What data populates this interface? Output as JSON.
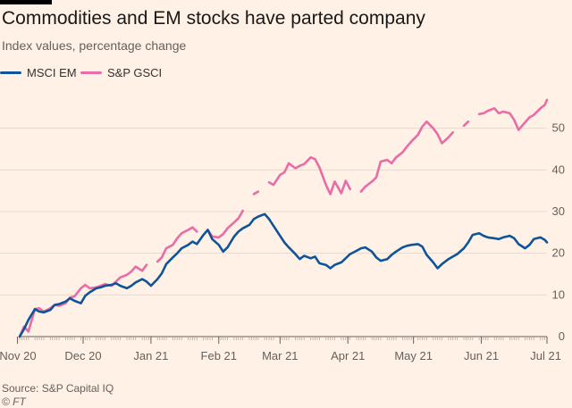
{
  "title": "Commodities and EM stocks have parted company",
  "subtitle": "Index values, percentage change",
  "source": "Source: S&P Capital IQ",
  "credit": "© FT",
  "colors": {
    "background": "#fff1e5",
    "msci": "#0f5499",
    "gsci": "#e86ca6",
    "grid": "#e6d9ce"
  },
  "chart_data": {
    "type": "line",
    "title": "Commodities and EM stocks have parted company",
    "subtitle": "Index values, percentage change",
    "xlabel": "",
    "ylabel": "",
    "x_range": [
      "2020-11-02",
      "2021-07-01"
    ],
    "ylim": [
      0,
      60
    ],
    "y_ticks": [
      0,
      10,
      20,
      30,
      40,
      50
    ],
    "x_tick_labels": [
      {
        "label": "Nov 20",
        "date": "2020-11-01"
      },
      {
        "label": "Dec 20",
        "date": "2020-12-01"
      },
      {
        "label": "Jan 21",
        "date": "2021-01-01"
      },
      {
        "label": "Feb 21",
        "date": "2021-02-01"
      },
      {
        "label": "Mar 21",
        "date": "2021-03-01"
      },
      {
        "label": "Apr 21",
        "date": "2021-04-01"
      },
      {
        "label": "May 21",
        "date": "2021-05-01"
      },
      {
        "label": "Jun 21",
        "date": "2021-06-01"
      },
      {
        "label": "Jul 21",
        "date": "2021-07-01"
      }
    ],
    "grid": true,
    "y_axis_side": "right",
    "legend_position": "top-left",
    "series": [
      {
        "name": "MSCI EM",
        "color": "#0f5499",
        "points": [
          [
            "2020-11-02",
            0.0
          ],
          [
            "2020-11-04",
            1.8
          ],
          [
            "2020-11-06",
            4.0
          ],
          [
            "2020-11-09",
            6.6
          ],
          [
            "2020-11-11",
            6.0
          ],
          [
            "2020-11-13",
            5.8
          ],
          [
            "2020-11-16",
            6.4
          ],
          [
            "2020-11-18",
            7.6
          ],
          [
            "2020-11-20",
            7.8
          ],
          [
            "2020-11-23",
            8.4
          ],
          [
            "2020-11-25",
            9.2
          ],
          [
            "2020-11-27",
            8.6
          ],
          [
            "2020-11-30",
            8.0
          ],
          [
            "2020-12-02",
            9.8
          ],
          [
            "2020-12-04",
            10.6
          ],
          [
            "2020-12-07",
            11.6
          ],
          [
            "2020-12-09",
            11.8
          ],
          [
            "2020-12-11",
            12.2
          ],
          [
            "2020-12-14",
            12.4
          ],
          [
            "2020-12-16",
            12.8
          ],
          [
            "2020-12-18",
            12.2
          ],
          [
            "2020-12-21",
            11.6
          ],
          [
            "2020-12-23",
            12.2
          ],
          [
            "2020-12-25",
            13.0
          ],
          [
            "2020-12-28",
            13.8
          ],
          [
            "2020-12-30",
            13.2
          ],
          [
            "2021-01-01",
            12.2
          ],
          [
            "2021-01-04",
            13.8
          ],
          [
            "2021-01-06",
            15.2
          ],
          [
            "2021-01-08",
            17.4
          ],
          [
            "2021-01-11",
            19.0
          ],
          [
            "2021-01-13",
            20.0
          ],
          [
            "2021-01-15",
            21.2
          ],
          [
            "2021-01-18",
            22.0
          ],
          [
            "2021-01-20",
            22.8
          ],
          [
            "2021-01-22",
            22.2
          ],
          [
            "2021-01-25",
            24.4
          ],
          [
            "2021-01-27",
            25.6
          ],
          [
            "2021-01-29",
            23.4
          ],
          [
            "2021-02-01",
            22.0
          ],
          [
            "2021-02-03",
            20.4
          ],
          [
            "2021-02-05",
            21.4
          ],
          [
            "2021-02-08",
            24.0
          ],
          [
            "2021-02-10",
            25.2
          ],
          [
            "2021-02-12",
            26.0
          ],
          [
            "2021-02-15",
            26.8
          ],
          [
            "2021-02-17",
            28.2
          ],
          [
            "2021-02-19",
            28.8
          ],
          [
            "2021-02-22",
            29.4
          ],
          [
            "2021-02-24",
            28.2
          ],
          [
            "2021-02-26",
            26.6
          ],
          [
            "2021-03-01",
            24.2
          ],
          [
            "2021-03-03",
            22.6
          ],
          [
            "2021-03-05",
            21.4
          ],
          [
            "2021-03-08",
            19.8
          ],
          [
            "2021-03-10",
            18.6
          ],
          [
            "2021-03-12",
            19.4
          ],
          [
            "2021-03-15",
            18.8
          ],
          [
            "2021-03-17",
            19.2
          ],
          [
            "2021-03-19",
            17.6
          ],
          [
            "2021-03-22",
            17.2
          ],
          [
            "2021-03-24",
            16.4
          ],
          [
            "2021-03-26",
            17.2
          ],
          [
            "2021-03-29",
            17.8
          ],
          [
            "2021-03-31",
            18.8
          ],
          [
            "2021-04-02",
            19.8
          ],
          [
            "2021-04-05",
            20.6
          ],
          [
            "2021-04-07",
            21.2
          ],
          [
            "2021-04-09",
            21.4
          ],
          [
            "2021-04-12",
            20.4
          ],
          [
            "2021-04-14",
            19.0
          ],
          [
            "2021-04-16",
            18.2
          ],
          [
            "2021-04-19",
            18.6
          ],
          [
            "2021-04-21",
            19.6
          ],
          [
            "2021-04-23",
            20.4
          ],
          [
            "2021-04-26",
            21.4
          ],
          [
            "2021-04-28",
            21.8
          ],
          [
            "2021-04-30",
            22.0
          ],
          [
            "2021-05-03",
            22.2
          ],
          [
            "2021-05-05",
            21.6
          ],
          [
            "2021-05-07",
            19.6
          ],
          [
            "2021-05-10",
            17.8
          ],
          [
            "2021-05-12",
            16.4
          ],
          [
            "2021-05-14",
            17.4
          ],
          [
            "2021-05-17",
            18.6
          ],
          [
            "2021-05-19",
            19.2
          ],
          [
            "2021-05-21",
            19.8
          ],
          [
            "2021-05-24",
            21.2
          ],
          [
            "2021-05-26",
            22.6
          ],
          [
            "2021-05-28",
            24.4
          ],
          [
            "2021-05-31",
            24.8
          ],
          [
            "2021-06-02",
            24.2
          ],
          [
            "2021-06-04",
            23.8
          ],
          [
            "2021-06-07",
            23.6
          ],
          [
            "2021-06-09",
            23.4
          ],
          [
            "2021-06-11",
            23.8
          ],
          [
            "2021-06-14",
            24.2
          ],
          [
            "2021-06-16",
            23.6
          ],
          [
            "2021-06-18",
            22.2
          ],
          [
            "2021-06-21",
            21.2
          ],
          [
            "2021-06-23",
            22.0
          ],
          [
            "2021-06-25",
            23.4
          ],
          [
            "2021-06-28",
            23.8
          ],
          [
            "2021-06-30",
            23.2
          ],
          [
            "2021-07-01",
            22.6
          ]
        ]
      },
      {
        "name": "S&P GSCI",
        "color": "#e86ca6",
        "points": [
          [
            "2020-11-02",
            0.0
          ],
          [
            "2020-11-04",
            2.4
          ],
          [
            "2020-11-06",
            1.2
          ],
          [
            "2020-11-09",
            6.6
          ],
          [
            "2020-11-11",
            6.8
          ],
          [
            "2020-11-13",
            6.0
          ],
          [
            "2020-11-16",
            6.8
          ],
          [
            "2020-11-18",
            7.6
          ],
          [
            "2020-11-20",
            7.4
          ],
          [
            "2020-11-23",
            8.0
          ],
          [
            "2020-11-25",
            9.4
          ],
          [
            "2020-11-27",
            9.6
          ],
          [
            "2020-11-30",
            11.6
          ],
          [
            "2020-12-02",
            12.4
          ],
          [
            "2020-12-04",
            11.6
          ],
          [
            "2020-12-07",
            11.8
          ],
          [
            "2020-12-09",
            12.2
          ],
          [
            "2020-12-11",
            12.6
          ],
          [
            "2020-12-14",
            12.2
          ],
          [
            "2020-12-16",
            13.2
          ],
          [
            "2020-12-18",
            14.2
          ],
          [
            "2020-12-21",
            14.8
          ],
          [
            "2020-12-23",
            15.6
          ],
          [
            "2020-12-25",
            16.8
          ],
          [
            "2020-12-28",
            15.8
          ],
          [
            "2020-12-30",
            17.2
          ],
          [
            "2021-01-01",
            null
          ],
          [
            "2021-01-04",
            18.0
          ],
          [
            "2021-01-06",
            19.0
          ],
          [
            "2021-01-08",
            21.2
          ],
          [
            "2021-01-11",
            22.0
          ],
          [
            "2021-01-13",
            23.6
          ],
          [
            "2021-01-15",
            24.8
          ],
          [
            "2021-01-18",
            25.6
          ],
          [
            "2021-01-20",
            26.2
          ],
          [
            "2021-01-22",
            25.2
          ],
          [
            "2021-01-25",
            null
          ],
          [
            "2021-01-27",
            25.6
          ],
          [
            "2021-01-29",
            24.0
          ],
          [
            "2021-02-01",
            23.8
          ],
          [
            "2021-02-03",
            24.6
          ],
          [
            "2021-02-05",
            26.0
          ],
          [
            "2021-02-08",
            27.4
          ],
          [
            "2021-02-10",
            28.4
          ],
          [
            "2021-02-12",
            30.2
          ],
          [
            "2021-02-15",
            null
          ],
          [
            "2021-02-17",
            34.2
          ],
          [
            "2021-02-19",
            34.8
          ],
          [
            "2021-02-22",
            null
          ],
          [
            "2021-02-24",
            37.0
          ],
          [
            "2021-02-26",
            36.4
          ],
          [
            "2021-03-01",
            38.8
          ],
          [
            "2021-03-03",
            39.4
          ],
          [
            "2021-03-05",
            41.6
          ],
          [
            "2021-03-08",
            40.4
          ],
          [
            "2021-03-10",
            41.0
          ],
          [
            "2021-03-12",
            41.4
          ],
          [
            "2021-03-15",
            43.0
          ],
          [
            "2021-03-17",
            42.6
          ],
          [
            "2021-03-19",
            40.6
          ],
          [
            "2021-03-22",
            36.4
          ],
          [
            "2021-03-24",
            34.2
          ],
          [
            "2021-03-26",
            37.2
          ],
          [
            "2021-03-29",
            34.4
          ],
          [
            "2021-03-31",
            37.4
          ],
          [
            "2021-04-02",
            35.4
          ],
          [
            "2021-04-05",
            null
          ],
          [
            "2021-04-07",
            34.8
          ],
          [
            "2021-04-09",
            36.0
          ],
          [
            "2021-04-12",
            37.2
          ],
          [
            "2021-04-14",
            38.2
          ],
          [
            "2021-04-16",
            42.0
          ],
          [
            "2021-04-19",
            42.4
          ],
          [
            "2021-04-21",
            41.6
          ],
          [
            "2021-04-23",
            43.0
          ],
          [
            "2021-04-26",
            44.2
          ],
          [
            "2021-04-28",
            45.6
          ],
          [
            "2021-04-30",
            46.8
          ],
          [
            "2021-05-03",
            48.4
          ],
          [
            "2021-05-05",
            50.4
          ],
          [
            "2021-05-07",
            51.6
          ],
          [
            "2021-05-10",
            50.0
          ],
          [
            "2021-05-12",
            48.6
          ],
          [
            "2021-05-14",
            46.4
          ],
          [
            "2021-05-17",
            47.8
          ],
          [
            "2021-05-19",
            49.0
          ],
          [
            "2021-05-21",
            null
          ],
          [
            "2021-05-24",
            50.6
          ],
          [
            "2021-05-26",
            51.6
          ],
          [
            "2021-05-28",
            null
          ],
          [
            "2021-05-31",
            53.4
          ],
          [
            "2021-06-02",
            53.6
          ],
          [
            "2021-06-04",
            54.2
          ],
          [
            "2021-06-07",
            54.8
          ],
          [
            "2021-06-09",
            53.6
          ],
          [
            "2021-06-11",
            54.0
          ],
          [
            "2021-06-14",
            53.6
          ],
          [
            "2021-06-16",
            52.0
          ],
          [
            "2021-06-18",
            49.6
          ],
          [
            "2021-06-21",
            51.4
          ],
          [
            "2021-06-23",
            52.6
          ],
          [
            "2021-06-25",
            53.2
          ],
          [
            "2021-06-28",
            54.8
          ],
          [
            "2021-06-30",
            55.6
          ],
          [
            "2021-07-01",
            56.8
          ]
        ]
      }
    ]
  }
}
